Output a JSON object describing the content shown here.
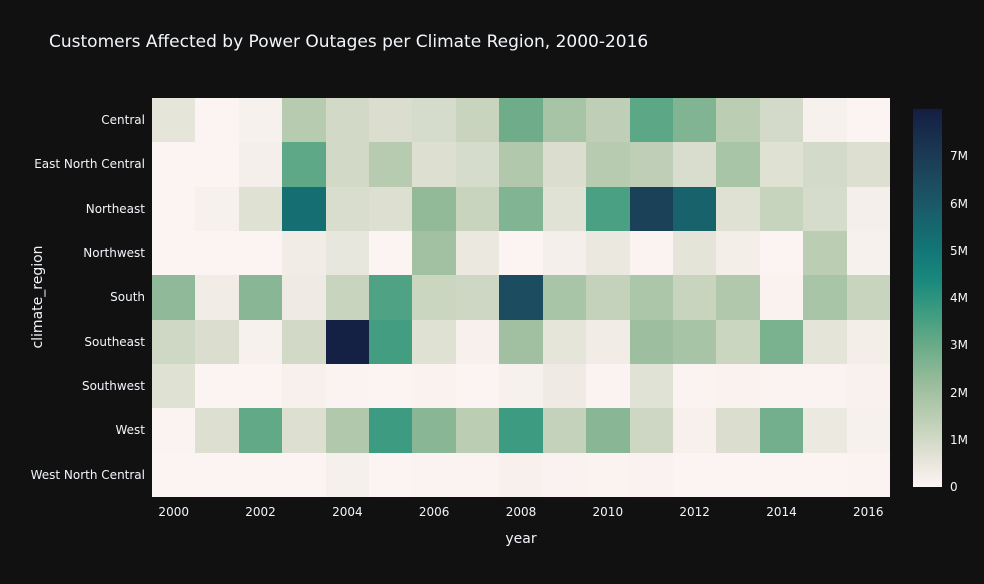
{
  "page": {
    "background_color": "#111111",
    "text_color": "#f2f5fa"
  },
  "title": "Customers Affected by Power Outages per Climate Region, 2000-2016",
  "chart_data": {
    "type": "heatmap",
    "title": "Customers Affected by Power Outages per Climate Region, 2000-2016",
    "xlabel": "year",
    "ylabel": "climate_region",
    "x": [
      2000,
      2001,
      2002,
      2003,
      2004,
      2005,
      2006,
      2007,
      2008,
      2009,
      2010,
      2011,
      2012,
      2013,
      2014,
      2015,
      2016
    ],
    "x_ticks": [
      {
        "value": 2000,
        "label": "2000"
      },
      {
        "value": 2002,
        "label": "2002"
      },
      {
        "value": 2004,
        "label": "2004"
      },
      {
        "value": 2006,
        "label": "2006"
      },
      {
        "value": 2008,
        "label": "2008"
      },
      {
        "value": 2010,
        "label": "2010"
      },
      {
        "value": 2012,
        "label": "2012"
      },
      {
        "value": 2014,
        "label": "2014"
      },
      {
        "value": 2016,
        "label": "2016"
      }
    ],
    "rows": [
      "Central",
      "East North Central",
      "Northeast",
      "Northwest",
      "South",
      "Southeast",
      "Southwest",
      "West",
      "West North Central"
    ],
    "matrix": [
      [
        550000,
        50000,
        150000,
        1600000,
        1000000,
        800000,
        900000,
        1200000,
        2900000,
        1900000,
        1400000,
        3200000,
        2600000,
        1500000,
        950000,
        150000,
        50000
      ],
      [
        50000,
        50000,
        200000,
        3150000,
        1000000,
        1600000,
        750000,
        900000,
        1700000,
        800000,
        1600000,
        1400000,
        850000,
        1850000,
        700000,
        950000,
        750000
      ],
      [
        50000,
        150000,
        700000,
        5300000,
        850000,
        750000,
        2300000,
        1200000,
        2600000,
        650000,
        3500000,
        6800000,
        5700000,
        700000,
        1250000,
        900000,
        200000
      ],
      [
        50000,
        50000,
        50000,
        300000,
        500000,
        50000,
        2000000,
        450000,
        50000,
        200000,
        450000,
        70000,
        600000,
        250000,
        50000,
        1500000,
        150000
      ],
      [
        2350000,
        300000,
        2450000,
        350000,
        1200000,
        3400000,
        1150000,
        1100000,
        6400000,
        1850000,
        1300000,
        1800000,
        1200000,
        1700000,
        100000,
        1850000,
        1200000
      ],
      [
        1050000,
        800000,
        150000,
        1000000,
        7900000,
        3600000,
        700000,
        170000,
        2050000,
        550000,
        300000,
        2100000,
        1900000,
        1150000,
        2700000,
        600000,
        250000
      ],
      [
        700000,
        50000,
        50000,
        170000,
        70000,
        50000,
        120000,
        50000,
        150000,
        350000,
        70000,
        650000,
        70000,
        100000,
        60000,
        60000,
        140000
      ],
      [
        70000,
        750000,
        3100000,
        750000,
        1700000,
        3700000,
        2450000,
        1500000,
        3700000,
        1300000,
        2450000,
        1100000,
        170000,
        800000,
        2800000,
        400000,
        150000
      ],
      [
        50000,
        50000,
        50000,
        50000,
        180000,
        50000,
        60000,
        60000,
        170000,
        90000,
        80000,
        90000,
        50000,
        50000,
        50000,
        50000,
        70000
      ]
    ],
    "zmin": 0,
    "zmax": 8000000,
    "grid": false,
    "legend_position": "right-colorbar",
    "colorscale": [
      "#fef5f4",
      "#dee0d2",
      "#bdceb5",
      "#99bd9c",
      "#6ead8a",
      "#419d81",
      "#19897d",
      "#127475",
      "#195e6a",
      "#1c485d",
      "#193350",
      "#141d43"
    ],
    "colorbar_ticks": [
      {
        "value": 0,
        "label": "0"
      },
      {
        "value": 1000000,
        "label": "1M"
      },
      {
        "value": 2000000,
        "label": "2M"
      },
      {
        "value": 3000000,
        "label": "3M"
      },
      {
        "value": 4000000,
        "label": "4M"
      },
      {
        "value": 5000000,
        "label": "5M"
      },
      {
        "value": 6000000,
        "label": "6M"
      },
      {
        "value": 7000000,
        "label": "7M"
      }
    ]
  }
}
